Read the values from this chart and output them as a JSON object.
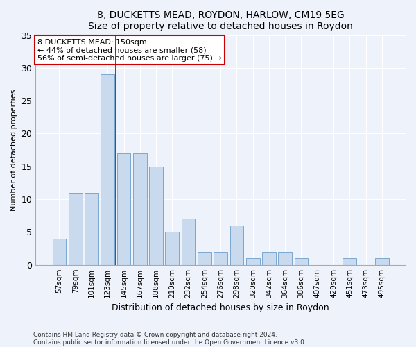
{
  "title1": "8, DUCKETTS MEAD, ROYDON, HARLOW, CM19 5EG",
  "title2": "Size of property relative to detached houses in Roydon",
  "xlabel": "Distribution of detached houses by size in Roydon",
  "ylabel": "Number of detached properties",
  "categories": [
    "57sqm",
    "79sqm",
    "101sqm",
    "123sqm",
    "145sqm",
    "167sqm",
    "188sqm",
    "210sqm",
    "232sqm",
    "254sqm",
    "276sqm",
    "298sqm",
    "320sqm",
    "342sqm",
    "364sqm",
    "386sqm",
    "407sqm",
    "429sqm",
    "451sqm",
    "473sqm",
    "495sqm"
  ],
  "values": [
    4,
    11,
    11,
    29,
    17,
    17,
    15,
    5,
    7,
    2,
    2,
    6,
    1,
    2,
    2,
    1,
    0,
    0,
    1,
    0,
    1
  ],
  "bar_color": "#c9d9ee",
  "bar_edge_color": "#7aa8d0",
  "vline_index": 4,
  "vline_color": "#aa0000",
  "annotation_line1": "8 DUCKETTS MEAD: 150sqm",
  "annotation_line2": "← 44% of detached houses are smaller (58)",
  "annotation_line3": "56% of semi-detached houses are larger (75) →",
  "annotation_box_edge": "#cc0000",
  "ylim": [
    0,
    35
  ],
  "yticks": [
    0,
    5,
    10,
    15,
    20,
    25,
    30,
    35
  ],
  "footer1": "Contains HM Land Registry data © Crown copyright and database right 2024.",
  "footer2": "Contains public sector information licensed under the Open Government Licence v3.0.",
  "bg_color": "#eef2fa",
  "plot_bg_color": "#eef2fa"
}
